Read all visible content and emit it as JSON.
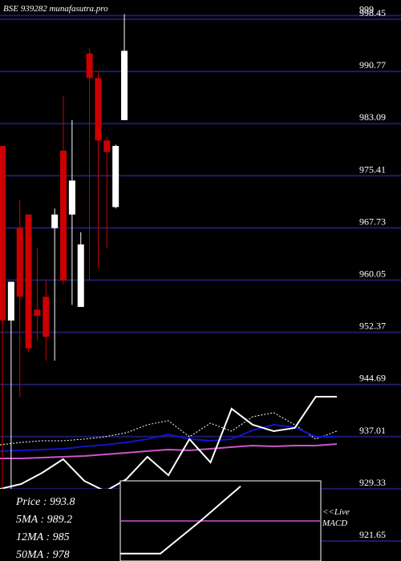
{
  "chart_data": {
    "type": "candlestick",
    "title": "BSE 939282 munafasutra.pro",
    "ylim": [
      918.7,
      1001.28
    ],
    "yticks": [
      999,
      998.45,
      990.77,
      983.09,
      975.41,
      967.73,
      960.05,
      952.37,
      944.69,
      937.01,
      929.33,
      921.65
    ],
    "grid": true,
    "grid_color": "#1c1c66",
    "up_color": "#ffffff",
    "down_color": "#cc0000",
    "candles": [
      {
        "open": 979.8,
        "high": 979.8,
        "low": 929.3,
        "close": 954.1
      },
      {
        "open": 954.1,
        "high": 959.8,
        "low": 919.9,
        "close": 959.8
      },
      {
        "open": 967.7,
        "high": 971.8,
        "low": 942.9,
        "close": 957.6
      },
      {
        "open": 969.7,
        "high": 969.7,
        "low": 949.4,
        "close": 950.0
      },
      {
        "open": 955.7,
        "high": 964.7,
        "low": 951.1,
        "close": 954.8
      },
      {
        "open": 957.6,
        "high": 960.0,
        "low": 948.2,
        "close": 951.7
      },
      {
        "open": 967.7,
        "high": 970.6,
        "low": 948.2,
        "close": 969.7
      },
      {
        "open": 979.1,
        "high": 987.1,
        "low": 959.4,
        "close": 960.0
      },
      {
        "open": 969.7,
        "high": 983.6,
        "low": 956.4,
        "close": 974.7
      },
      {
        "open": 956.1,
        "high": 967.1,
        "low": 956.1,
        "close": 965.3
      },
      {
        "open": 993.4,
        "high": 994.2,
        "low": 960.0,
        "close": 989.8
      },
      {
        "open": 989.8,
        "high": 990.9,
        "low": 961.8,
        "close": 980.6
      },
      {
        "open": 980.6,
        "high": 981.2,
        "low": 964.7,
        "close": 978.9
      },
      {
        "open": 970.8,
        "high": 980.0,
        "low": 970.6,
        "close": 979.8
      },
      {
        "open": 983.6,
        "high": 999.2,
        "low": 983.6,
        "close": 993.8
      }
    ],
    "series": [
      {
        "color": "#ffffff",
        "dash": true,
        "values": [
          935.81,
          936.16,
          936.4,
          936.4,
          936.64,
          936.99,
          937.58,
          938.76,
          939.35,
          936.99,
          938.99,
          937.82,
          939.94,
          940.53,
          938.76,
          936.64,
          937.82
        ]
      },
      {
        "color": "#1414c8",
        "dash": false,
        "values": [
          934.87,
          934.98,
          935.1,
          935.22,
          935.57,
          935.81,
          936.16,
          936.64,
          937.34,
          936.64,
          936.4,
          936.64,
          937.93,
          938.76,
          938.4,
          936.99,
          936.99
        ]
      },
      {
        "color": "#cc55cc",
        "dash": false,
        "values": [
          933.8,
          933.8,
          933.92,
          934.04,
          934.16,
          934.39,
          934.63,
          934.87,
          935.1,
          934.98,
          935.22,
          935.46,
          935.69,
          935.57,
          935.69,
          935.69,
          935.93
        ]
      },
      {
        "color": "#ffffff",
        "dash": false,
        "values": [
          929.32,
          930.03,
          931.68,
          933.69,
          930.5,
          928.97,
          930.74,
          934.04,
          931.33,
          936.64,
          933.21,
          941.12,
          938.76,
          937.82,
          938.29,
          942.89,
          942.89
        ]
      }
    ],
    "info_lines": [
      "Price : 993.8",
      "5MA : 989.2",
      "12MA : 985",
      "50MA : 978"
    ],
    "macd": {
      "ylim": [
        -1,
        1
      ],
      "signal": 0,
      "signal_color": "#cc55cc",
      "line_color": "#ffffff",
      "values": [
        -0.85,
        -0.85,
        0,
        0.9
      ]
    },
    "live_label": "<<Live",
    "macd_label": "MACD"
  }
}
